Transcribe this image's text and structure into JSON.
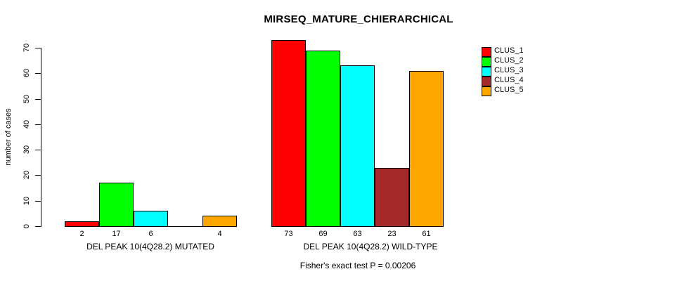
{
  "chart_data": {
    "type": "bar",
    "title": "MIRSEQ_MATURE_CHIERARCHICAL",
    "ylabel": "number of cases",
    "xlabel": "",
    "ylim": [
      0,
      73
    ],
    "yticks": [
      0,
      10,
      20,
      30,
      40,
      50,
      60,
      70
    ],
    "grid": false,
    "legend": {
      "position": "top-right",
      "entries": [
        {
          "label": "CLUS_1",
          "color": "#FF0000"
        },
        {
          "label": "CLUS_2",
          "color": "#00FF00"
        },
        {
          "label": "CLUS_3",
          "color": "#00FFFF"
        },
        {
          "label": "CLUS_4",
          "color": "#A52A2A"
        },
        {
          "label": "CLUS_5",
          "color": "#FFA500"
        }
      ]
    },
    "groups": [
      {
        "label": "DEL PEAK 10(4Q28.2) MUTATED",
        "series": [
          "CLUS_1",
          "CLUS_2",
          "CLUS_3",
          "CLUS_4",
          "CLUS_5"
        ],
        "values": [
          2,
          17,
          6,
          0,
          4
        ],
        "bar_labels": [
          "2",
          "17",
          "6",
          "",
          "4"
        ]
      },
      {
        "label": "DEL PEAK 10(4Q28.2) WILD-TYPE",
        "series": [
          "CLUS_1",
          "CLUS_2",
          "CLUS_3",
          "CLUS_4",
          "CLUS_5"
        ],
        "values": [
          73,
          69,
          63,
          23,
          61
        ],
        "bar_labels": [
          "73",
          "69",
          "63",
          "23",
          "61"
        ]
      }
    ],
    "annotation": "Fisher's exact test P = 0.00206"
  }
}
